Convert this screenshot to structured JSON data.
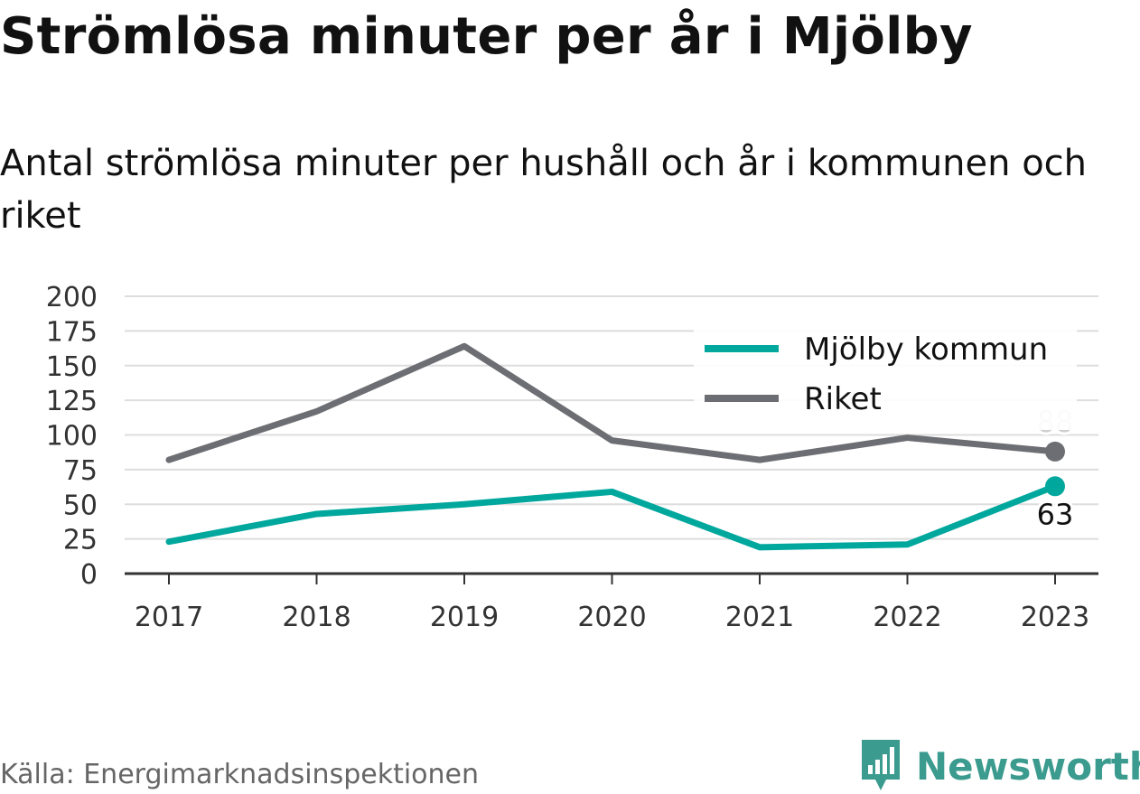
{
  "title": "Strömlösa minuter per år i Mjölby",
  "subtitle": "Antal strömlösa minuter per hushåll och år i kommunen och riket",
  "source": "Källa: Energimarknadsinspektionen",
  "brand": {
    "name": "Newsworthy",
    "icon": "bar-chart-pin-icon",
    "color": "#3b9b8e"
  },
  "chart_data": {
    "type": "line",
    "x": [
      "2017",
      "2018",
      "2019",
      "2020",
      "2021",
      "2022",
      "2023"
    ],
    "ylim": [
      0,
      200
    ],
    "yticks": [
      0,
      25,
      50,
      75,
      100,
      125,
      150,
      175,
      200
    ],
    "grid": true,
    "legend": "top-right",
    "series": [
      {
        "name": "Mjölby kommun",
        "color": "#00a79d",
        "values": [
          23,
          43,
          50,
          59,
          19,
          21,
          63
        ],
        "end_label": "63"
      },
      {
        "name": "Riket",
        "color": "#6d6e73",
        "values": [
          82,
          117,
          164,
          96,
          82,
          98,
          88
        ],
        "end_label": "88"
      }
    ]
  }
}
